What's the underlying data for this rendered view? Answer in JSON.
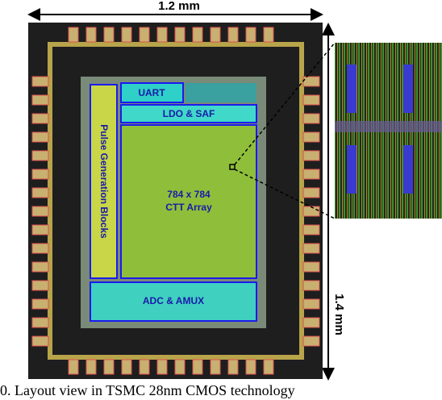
{
  "dimensions": {
    "width": "1.2 mm",
    "height": "1.4 mm"
  },
  "blocks": {
    "uart": "UART",
    "ldo": "LDO & SAF",
    "pulse": "Pulse Generation Blocks",
    "array_size": "784 x 784",
    "array_name": "CTT Array",
    "adc": "ADC & AMUX"
  },
  "caption": "0.  Layout view in TSMC 28nm CMOS technology"
}
